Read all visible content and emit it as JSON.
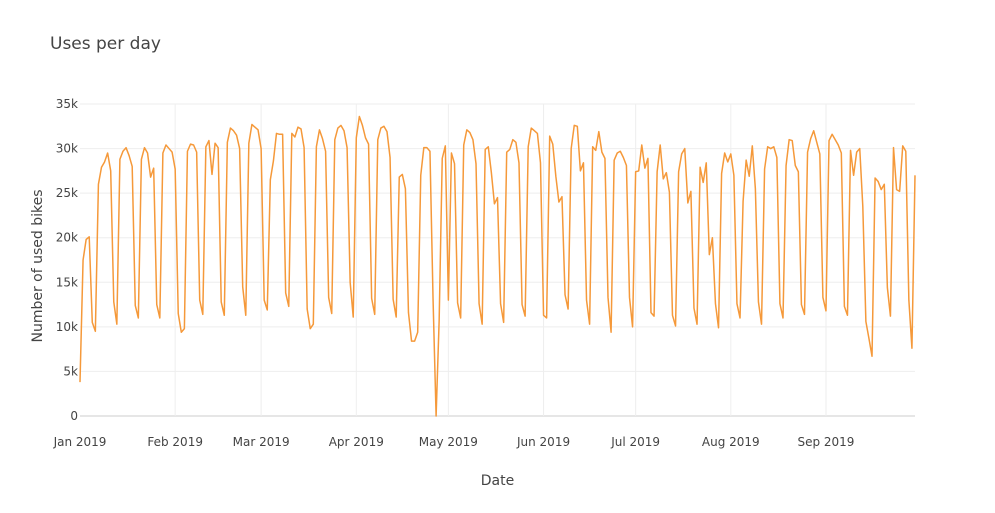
{
  "chart_data": {
    "type": "line",
    "title": "Uses per day",
    "xlabel": "Date",
    "ylabel": "Number of used bikes",
    "x_start": "2019-01-01",
    "xlim": [
      "2019-01-01",
      "2019-09-30"
    ],
    "ylim": [
      0,
      35000
    ],
    "y_ticks": [
      0,
      5000,
      10000,
      15000,
      20000,
      25000,
      30000,
      35000
    ],
    "y_tick_labels": [
      "0",
      "5k",
      "10k",
      "15k",
      "20k",
      "25k",
      "30k",
      "35k"
    ],
    "x_ticks": [
      "2019-01-01",
      "2019-02-01",
      "2019-03-01",
      "2019-04-01",
      "2019-05-01",
      "2019-06-01",
      "2019-07-01",
      "2019-08-01",
      "2019-09-01"
    ],
    "x_tick_labels": [
      "Jan 2019",
      "Feb 2019",
      "Mar 2019",
      "Apr 2019",
      "May 2019",
      "Jun 2019",
      "Jul 2019",
      "Aug 2019",
      "Sep 2019"
    ],
    "grid": true,
    "line_color": "#f5993a",
    "series": [
      {
        "values": [
          3800,
          17500,
          19800,
          20100,
          10500,
          9500,
          26000,
          27900,
          28500,
          29500,
          27500,
          12800,
          10300,
          28800,
          29700,
          30100,
          29200,
          28000,
          12400,
          11000,
          28800,
          30100,
          29500,
          26800,
          27800,
          12500,
          11000,
          29500,
          30400,
          30000,
          29600,
          27700,
          11500,
          9400,
          9800,
          29700,
          30500,
          30400,
          29600,
          13000,
          11400,
          30200,
          30900,
          27100,
          30600,
          30100,
          12800,
          11300,
          30700,
          32300,
          32000,
          31500,
          30000,
          14500,
          11300,
          30600,
          32700,
          32400,
          32100,
          30000,
          13000,
          11900,
          26500,
          28600,
          31700,
          31600,
          31600,
          13800,
          12300,
          31700,
          31300,
          32400,
          32200,
          30100,
          12000,
          9800,
          10300,
          30200,
          32100,
          31100,
          29700,
          13300,
          11500,
          31000,
          32300,
          32600,
          32000,
          30100,
          15000,
          11100,
          31200,
          33600,
          32600,
          31200,
          30500,
          13200,
          11400,
          31000,
          32300,
          32500,
          31900,
          29000,
          13100,
          11100,
          26800,
          27100,
          25500,
          11600,
          8400,
          8400,
          9400,
          27000,
          30100,
          30100,
          29700,
          13200,
          0,
          10800,
          28900,
          30300,
          13000,
          29500,
          28300,
          12700,
          11000,
          30400,
          32100,
          31800,
          31000,
          28300,
          12600,
          10300,
          29900,
          30200,
          27300,
          23800,
          24500,
          12600,
          10500,
          29600,
          29900,
          31000,
          30700,
          28400,
          12500,
          11200,
          30200,
          32300,
          32000,
          31700,
          28400,
          11300,
          11000,
          31400,
          30500,
          26900,
          24000,
          24600,
          13600,
          12000,
          30000,
          32600,
          32500,
          27500,
          28400,
          13000,
          10300,
          30200,
          29800,
          31900,
          29600,
          28900,
          13300,
          9400,
          28700,
          29500,
          29700,
          29000,
          28100,
          13300,
          10000,
          27400,
          27500,
          30400,
          27800,
          28900,
          11600,
          11200,
          27400,
          30400,
          26600,
          27300,
          25100,
          11300,
          10100,
          27400,
          29400,
          30000,
          23900,
          25200,
          12100,
          10300,
          27900,
          26200,
          28400,
          18100,
          20000,
          12600,
          9900,
          27200,
          29500,
          28500,
          29400,
          27000,
          12600,
          11000,
          24100,
          28700,
          26900,
          30300,
          25500,
          12800,
          10300,
          27700,
          30200,
          30000,
          30200,
          29000,
          12600,
          11000,
          28100,
          31000,
          30900,
          28100,
          27400,
          12500,
          11400,
          29600,
          31100,
          32000,
          30700,
          29400,
          13300,
          11800,
          30900,
          31600,
          31000,
          30400,
          29500,
          12300,
          11300,
          29800,
          27000,
          29600,
          30000,
          23500,
          10600,
          8700,
          6700,
          26700,
          26300,
          25400,
          26000,
          14400,
          11200,
          30100,
          25400,
          25200,
          30300,
          29700,
          13000,
          7600,
          27000
        ]
      }
    ]
  }
}
